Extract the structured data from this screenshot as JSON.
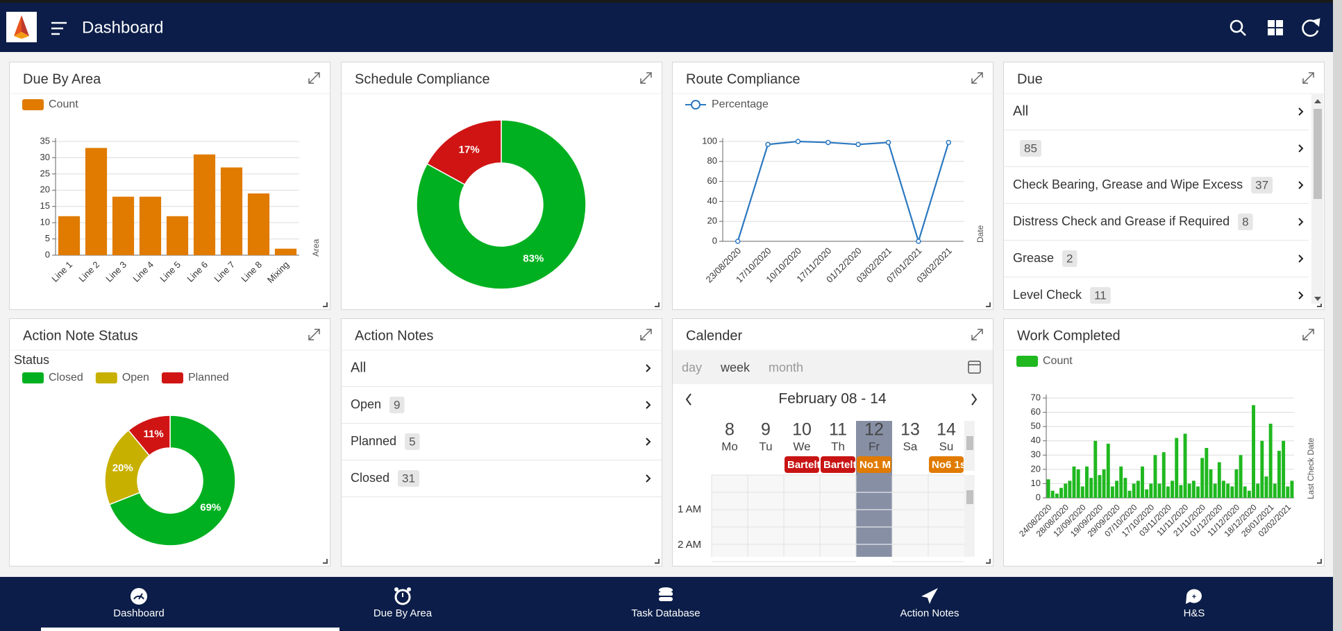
{
  "header": {
    "title": "Dashboard"
  },
  "due_by_area": {
    "title": "Due By Area",
    "chart": {
      "type": "bar",
      "categories": [
        "Line 1",
        "Line 2",
        "Line 3",
        "Line 4",
        "Line 5",
        "Line 6",
        "Line 7",
        "Line 8",
        "Mixing"
      ],
      "series": [
        {
          "name": "Count",
          "color": "#e07b00",
          "values": [
            12,
            33,
            18,
            18,
            12,
            31,
            27,
            19,
            2
          ]
        }
      ],
      "ylim": [
        0,
        35
      ],
      "yticks": [
        0,
        5,
        10,
        15,
        20,
        25,
        30,
        35
      ],
      "x_label": "Area"
    }
  },
  "schedule_compliance": {
    "title": "Schedule Compliance",
    "chart": {
      "type": "pie",
      "values": [
        83,
        17
      ],
      "value_labels": [
        "83%",
        "17%"
      ],
      "colors": [
        "#00b020",
        "#d01414"
      ]
    }
  },
  "route_compliance": {
    "title": "Route Compliance",
    "chart": {
      "type": "line",
      "x": [
        "23/08/2020",
        "17/10/2020",
        "10/10/2020",
        "17/11/2020",
        "01/12/2020",
        "03/02/2021",
        "07/01/2021",
        "03/02/2021"
      ],
      "series": [
        {
          "name": "Percentage",
          "color": "#2b78c0",
          "values": [
            0,
            97,
            100,
            99,
            97,
            99,
            0,
            99
          ]
        }
      ],
      "ylim": [
        0,
        100
      ],
      "yticks": [
        0,
        20,
        40,
        60,
        80,
        100
      ],
      "x_label": "Date"
    }
  },
  "due": {
    "title": "Due",
    "items": [
      {
        "label": "All"
      },
      {
        "count": 85
      },
      {
        "label": "Check Bearing, Grease and Wipe Excess",
        "count": 37
      },
      {
        "label": "Distress Check and Grease if Required",
        "count": 8
      },
      {
        "label": "Grease",
        "count": 2
      },
      {
        "label": "Level Check",
        "count": 11
      }
    ]
  },
  "action_note_status": {
    "title": "Action Note Status",
    "chart": {
      "type": "pie",
      "legend_title": "Status",
      "categories": [
        "Closed",
        "Open",
        "Planned"
      ],
      "values": [
        69,
        20,
        11
      ],
      "value_labels": [
        "69%",
        "20%",
        "11%"
      ],
      "colors": [
        "#00b020",
        "#c8b000",
        "#d01414"
      ]
    }
  },
  "action_notes": {
    "title": "Action Notes",
    "items": [
      {
        "label": "All"
      },
      {
        "label": "Open",
        "count": 9
      },
      {
        "label": "Planned",
        "count": 5
      },
      {
        "label": "Closed",
        "count": 31
      }
    ]
  },
  "calendar": {
    "title": "Calender",
    "views": [
      "day",
      "week",
      "month"
    ],
    "range": "February 08 - 14",
    "days": [
      {
        "day": 8,
        "name": "Mo"
      },
      {
        "day": 9,
        "name": "Tu"
      },
      {
        "day": 10,
        "name": "We",
        "event": {
          "text": "Bartelt",
          "color": "#c81414"
        }
      },
      {
        "day": 11,
        "name": "Th",
        "event": {
          "text": "Bartelt",
          "color": "#c81414"
        }
      },
      {
        "day": 12,
        "name": "Fr",
        "event": {
          "text": "No1 M",
          "color": "#e07b00"
        }
      },
      {
        "day": 13,
        "name": "Sa"
      },
      {
        "day": 14,
        "name": "Su",
        "event": {
          "text": "No6 1s",
          "color": "#e07b00"
        }
      }
    ],
    "times": [
      "1 AM",
      "2 AM"
    ]
  },
  "work_completed": {
    "title": "Work Completed",
    "chart": {
      "type": "bar",
      "categories": [
        "24/08/2020",
        null,
        null,
        null,
        "28/08/2020",
        null,
        null,
        null,
        "12/09/2020",
        null,
        null,
        null,
        "19/09/2020",
        null,
        null,
        null,
        "29/09/2020",
        null,
        null,
        null,
        "07/10/2020",
        null,
        null,
        null,
        "17/10/2020",
        null,
        null,
        null,
        "03/11/2020",
        null,
        null,
        null,
        "11/11/2020",
        null,
        null,
        null,
        "21/11/2020",
        null,
        null,
        null,
        "01/12/2020",
        null,
        null,
        null,
        "11/12/2020",
        null,
        null,
        null,
        "18/12/2020",
        null,
        null,
        null,
        "26/01/2021",
        null,
        null,
        null,
        "02/02/2021",
        null
      ],
      "series": [
        {
          "name": "Count",
          "color": "#1fb81f",
          "values": [
            13,
            5,
            3,
            7,
            10,
            12,
            22,
            20,
            8,
            22,
            14,
            40,
            16,
            20,
            38,
            8,
            12,
            22,
            14,
            5,
            10,
            12,
            22,
            6,
            10,
            30,
            10,
            32,
            8,
            12,
            42,
            9,
            45,
            10,
            12,
            8,
            28,
            35,
            20,
            10,
            25,
            12,
            10,
            8,
            20,
            30,
            8,
            5,
            65,
            10,
            40,
            15,
            52,
            10,
            33,
            40,
            8,
            12
          ]
        }
      ],
      "ylim": [
        0,
        70
      ],
      "yticks": [
        0,
        10,
        20,
        30,
        40,
        50,
        60,
        70
      ],
      "x_label": "Last Check Date"
    }
  },
  "nav": [
    {
      "label": "Dashboard"
    },
    {
      "label": "Due By Area"
    },
    {
      "label": "Task Database"
    },
    {
      "label": "Action Notes"
    },
    {
      "label": "H&S"
    }
  ]
}
